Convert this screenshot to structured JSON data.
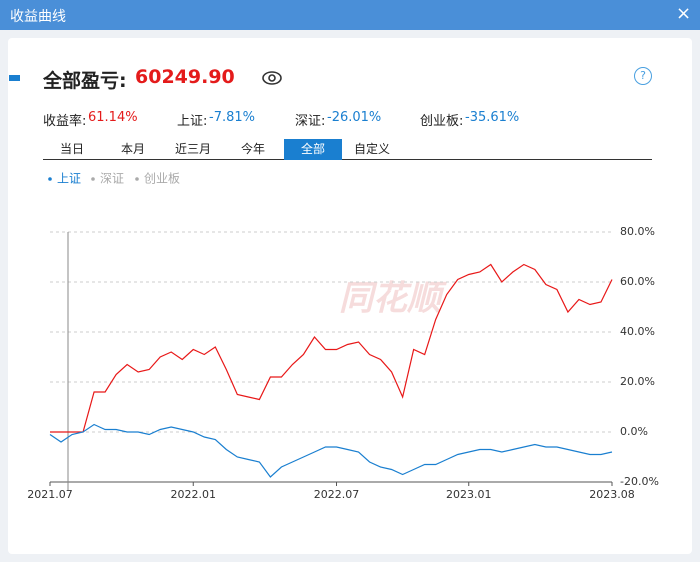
{
  "window": {
    "title": "收益曲线",
    "close": "×"
  },
  "header": {
    "label": "全部盈亏:",
    "value": "60249.90",
    "help": "?"
  },
  "stats": [
    {
      "label": "收益率:",
      "value": "61.14%",
      "color": "#e41b1b"
    },
    {
      "label": "上证:",
      "value": "-7.81%",
      "color": "#1a7fd0"
    },
    {
      "label": "深证:",
      "value": "-26.01%",
      "color": "#1a7fd0"
    },
    {
      "label": "创业板:",
      "value": "-35.61%",
      "color": "#1a7fd0"
    }
  ],
  "tabs": [
    "当日",
    "本月",
    "近三月",
    "今年",
    "全部",
    "自定义"
  ],
  "active_tab": 4,
  "legend_inactive": [
    "深证",
    "创业板"
  ],
  "watermark": "同花顺",
  "chart_data": {
    "type": "line",
    "categories": [
      "2021.07",
      null,
      null,
      null,
      null,
      null,
      null,
      null,
      null,
      null,
      null,
      null,
      null,
      "2022.01",
      null,
      null,
      null,
      null,
      null,
      null,
      null,
      null,
      null,
      null,
      null,
      null,
      "2022.07",
      null,
      null,
      null,
      null,
      null,
      null,
      null,
      null,
      null,
      null,
      null,
      "2023.01",
      null,
      null,
      null,
      null,
      null,
      null,
      null,
      null,
      null,
      null,
      null,
      null,
      "2023.08"
    ],
    "series": [
      {
        "color": "#e81818",
        "values": [
          0,
          0,
          0,
          0,
          16,
          16,
          23,
          27,
          24,
          25,
          30,
          32,
          29,
          33,
          31,
          34,
          25,
          15,
          14,
          13,
          22,
          22,
          27,
          31,
          38,
          33,
          33,
          35,
          36,
          31,
          29,
          24,
          14,
          33,
          31,
          45,
          55,
          61,
          63,
          64,
          67,
          60,
          64,
          67,
          65,
          59,
          57,
          48,
          53,
          51,
          52,
          61
        ]
      },
      {
        "name": "上证",
        "color": "#1a7fd0",
        "values": [
          -1,
          -4,
          -1,
          0,
          3,
          1,
          1,
          0,
          0,
          -1,
          1,
          2,
          1,
          0,
          -2,
          -3,
          -7,
          -10,
          -11,
          -12,
          -18,
          -14,
          -12,
          -10,
          -8,
          -6,
          -6,
          -7,
          -8,
          -12,
          -14,
          -15,
          -17,
          -15,
          -13,
          -13,
          -11,
          -9,
          -8,
          -7,
          -7,
          -8,
          -7,
          -6,
          -5,
          -6,
          -6,
          -7,
          -8,
          -9,
          -9,
          -8
        ]
      }
    ],
    "ylim": [
      -20,
      80
    ],
    "yticks": [
      {
        "value": -20,
        "label": "-20.0%"
      },
      {
        "value": 0,
        "label": "0.0%"
      },
      {
        "value": 20,
        "label": "20.0%"
      },
      {
        "value": 40,
        "label": "40.0%"
      },
      {
        "value": 60,
        "label": "60.0%"
      },
      {
        "value": 80,
        "label": "80.0%"
      }
    ],
    "grid": true
  }
}
